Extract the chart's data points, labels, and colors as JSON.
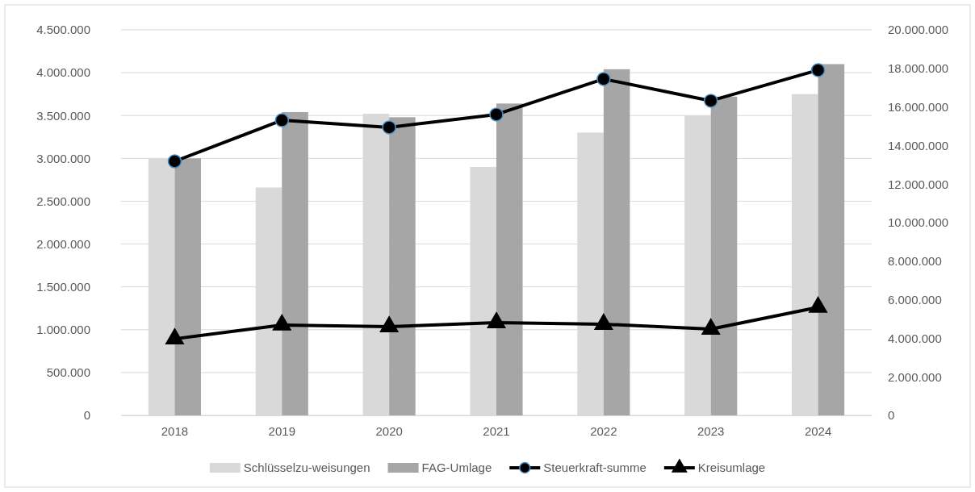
{
  "chart_data": {
    "type": "bar",
    "categories": [
      "2018",
      "2019",
      "2020",
      "2021",
      "2022",
      "2023",
      "2024"
    ],
    "series": [
      {
        "name": "Schlüsselzu-weisungen",
        "color": "#d9d9d9",
        "values": [
          3000000,
          2660000,
          3520000,
          2900000,
          3300000,
          3500000,
          3750000
        ]
      },
      {
        "name": "FAG-Umlage",
        "color": "#a6a6a6",
        "values": [
          3000000,
          3540000,
          3480000,
          3640000,
          4040000,
          3720000,
          4100000
        ]
      },
      {
        "name": "Steuerkraft-summe",
        "type": "line",
        "axis": "y2",
        "marker": "circle",
        "color": "#000000",
        "values": [
          13180000,
          15310000,
          14940000,
          15610000,
          17450000,
          16320000,
          17910000
        ]
      },
      {
        "name": "Kreisumlage",
        "type": "line",
        "axis": "y2",
        "marker": "triangle",
        "color": "#000000",
        "values": [
          3970000,
          4690000,
          4600000,
          4810000,
          4730000,
          4480000,
          5610000
        ]
      }
    ],
    "ylim": [
      0,
      4500000
    ],
    "yticks": [
      0,
      {
        "value": 500000,
        "label": "500.000"
      },
      {
        "value": 1000000,
        "label": "1.000.000"
      },
      {
        "value": 1500000,
        "label": "1.500.000"
      },
      {
        "value": 2000000,
        "label": "2.000.000"
      },
      {
        "value": 2500000,
        "label": "2.500.000"
      },
      {
        "value": 3000000,
        "label": "3.000.000"
      },
      {
        "value": 3500000,
        "label": "3.500.000"
      },
      {
        "value": 4000000,
        "label": "4.000.000"
      },
      {
        "value": 4500000,
        "label": "4.500.000"
      }
    ],
    "y2lim": [
      0,
      20000000
    ],
    "y2ticks": [
      0,
      {
        "value": 2000000,
        "label": "2.000.000"
      },
      {
        "value": 4000000,
        "label": "4.000.000"
      },
      {
        "value": 6000000,
        "label": "6.000.000"
      },
      {
        "value": 8000000,
        "label": "8.000.000"
      },
      {
        "value": 10000000,
        "label": "10.000.000"
      },
      {
        "value": 12000000,
        "label": "12.000.000"
      },
      {
        "value": 14000000,
        "label": "14.000.000"
      },
      {
        "value": 16000000,
        "label": "16.000.000"
      },
      {
        "value": 18000000,
        "label": "18.000.000"
      },
      {
        "value": 20000000,
        "label": "20.000.000"
      }
    ],
    "grid": "y",
    "legend": "bottom"
  }
}
